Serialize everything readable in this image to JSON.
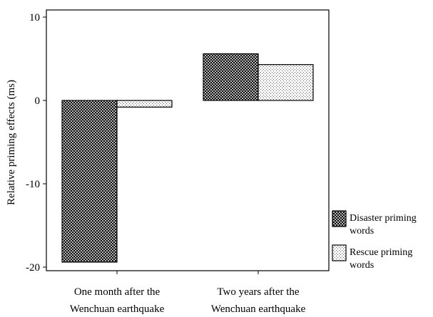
{
  "chart_data": {
    "type": "bar",
    "title": "",
    "xlabel": "",
    "ylabel": "Relative priming effects (ms)",
    "categories": [
      [
        "One month after the",
        "Wenchuan earthquake"
      ],
      [
        "Two years  after the",
        "Wenchuan earthquake"
      ]
    ],
    "series": [
      {
        "name": [
          "Disaster priming",
          "words"
        ],
        "values": [
          -19.4,
          5.6
        ],
        "pattern": "crosshatch"
      },
      {
        "name": [
          "Rescue priming",
          "words"
        ],
        "values": [
          -0.8,
          4.3
        ],
        "pattern": "dots"
      }
    ],
    "ylim": [
      -20,
      10
    ],
    "yticks": [
      -20,
      -10,
      0,
      10
    ],
    "ytick_labels": [
      "-20",
      "-10",
      "0",
      "10"
    ],
    "grid": false,
    "legend": "right-bottom"
  }
}
